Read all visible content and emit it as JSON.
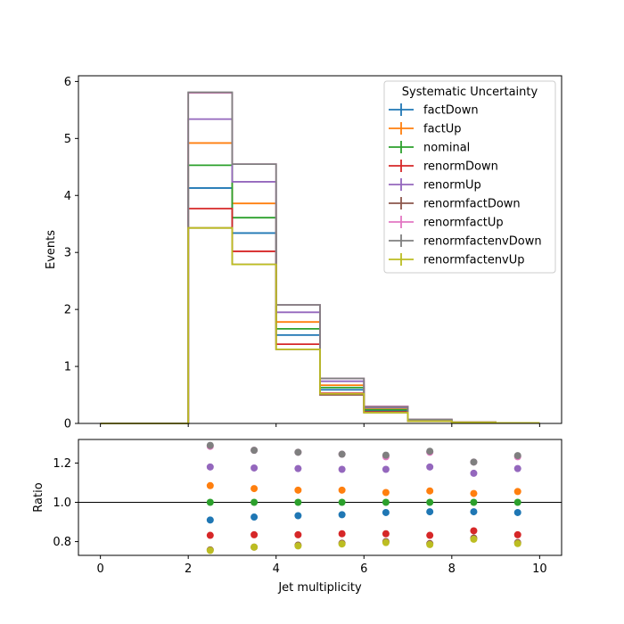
{
  "chart_data": [
    {
      "type": "step-histogram",
      "xlabel": "",
      "ylabel": "Events",
      "xlim": [
        -0.5,
        10.5
      ],
      "ylim": [
        0,
        6.1
      ],
      "xticks": [
        0,
        2,
        4,
        6,
        8,
        10
      ],
      "yticks": [
        0,
        1,
        2,
        3,
        4,
        5,
        6
      ],
      "bin_edges": [
        0,
        1,
        2,
        3,
        4,
        5,
        6,
        7,
        8,
        9,
        10
      ],
      "legend": {
        "title": "Systematic Uncertainty",
        "placement": "upper right"
      },
      "series": [
        {
          "name": "factDown",
          "color": "#1f77b4",
          "values": [
            0,
            0,
            4.13,
            3.34,
            1.55,
            0.59,
            0.22,
            0.05,
            0.02,
            0.01
          ]
        },
        {
          "name": "factUp",
          "color": "#ff7f0e",
          "values": [
            0,
            0,
            4.92,
            3.86,
            1.78,
            0.67,
            0.25,
            0.06,
            0.02,
            0.01
          ]
        },
        {
          "name": "nominal",
          "color": "#2ca02c",
          "values": [
            0,
            0,
            4.53,
            3.61,
            1.66,
            0.63,
            0.24,
            0.05,
            0.02,
            0.01
          ]
        },
        {
          "name": "renormDown",
          "color": "#d62728",
          "values": [
            0,
            0,
            3.77,
            3.02,
            1.39,
            0.53,
            0.2,
            0.04,
            0.02,
            0.01
          ]
        },
        {
          "name": "renormUp",
          "color": "#9467bd",
          "values": [
            0,
            0,
            5.34,
            4.24,
            1.95,
            0.74,
            0.28,
            0.06,
            0.02,
            0.01
          ]
        },
        {
          "name": "renormfactDown",
          "color": "#8c564b",
          "values": [
            0,
            0,
            3.43,
            2.79,
            1.3,
            0.5,
            0.19,
            0.04,
            0.02,
            0.01
          ]
        },
        {
          "name": "renormfactUp",
          "color": "#e377c2",
          "values": [
            0,
            0,
            5.8,
            4.55,
            2.08,
            0.79,
            0.3,
            0.07,
            0.02,
            0.01
          ]
        },
        {
          "name": "renormfactenvDown",
          "color": "#7f7f7f",
          "values": [
            0,
            0,
            5.81,
            4.55,
            2.08,
            0.79,
            0.29,
            0.07,
            0.02,
            0.01
          ]
        },
        {
          "name": "renormfactenvUp",
          "color": "#bcbd22",
          "values": [
            0,
            0,
            3.43,
            2.79,
            1.3,
            0.52,
            0.19,
            0.04,
            0.02,
            0.01
          ]
        }
      ]
    },
    {
      "type": "scatter",
      "xlabel": "Jet multiplicity",
      "ylabel": "Ratio",
      "xlim": [
        -0.5,
        10.5
      ],
      "ylim": [
        0.73,
        1.32
      ],
      "xticks": [
        0,
        2,
        4,
        6,
        8,
        10
      ],
      "yticks": [
        0.8,
        1.0,
        1.2
      ],
      "reference_line": 1.0,
      "x": [
        2.5,
        3.5,
        4.5,
        5.5,
        6.5,
        7.5,
        8.5,
        9.5
      ],
      "series": [
        {
          "name": "factDown",
          "color": "#1f77b4",
          "values": [
            0.91,
            0.925,
            0.932,
            0.937,
            0.948,
            0.952,
            0.952,
            0.948
          ]
        },
        {
          "name": "factUp",
          "color": "#ff7f0e",
          "values": [
            1.085,
            1.07,
            1.062,
            1.062,
            1.05,
            1.058,
            1.045,
            1.055
          ]
        },
        {
          "name": "nominal",
          "color": "#2ca02c",
          "values": [
            1.0,
            1.0,
            1.0,
            1.0,
            1.0,
            1.0,
            1.0,
            1.0
          ]
        },
        {
          "name": "renormDown",
          "color": "#d62728",
          "values": [
            0.832,
            0.835,
            0.835,
            0.84,
            0.84,
            0.832,
            0.855,
            0.835
          ]
        },
        {
          "name": "renormUp",
          "color": "#9467bd",
          "values": [
            1.18,
            1.175,
            1.172,
            1.168,
            1.168,
            1.18,
            1.148,
            1.172
          ]
        },
        {
          "name": "renormfactDown",
          "color": "#8c564b",
          "values": [
            0.758,
            0.772,
            0.782,
            0.792,
            0.8,
            0.79,
            0.818,
            0.795
          ]
        },
        {
          "name": "renormfactUp",
          "color": "#e377c2",
          "values": [
            1.285,
            1.265,
            1.255,
            1.245,
            1.232,
            1.255,
            1.205,
            1.232
          ]
        },
        {
          "name": "renormfactenvDown",
          "color": "#7f7f7f",
          "values": [
            1.29,
            1.265,
            1.255,
            1.245,
            1.24,
            1.26,
            1.205,
            1.238
          ]
        },
        {
          "name": "renormfactenvUp",
          "color": "#bcbd22",
          "values": [
            0.755,
            0.772,
            0.778,
            0.788,
            0.795,
            0.785,
            0.812,
            0.79
          ]
        }
      ]
    }
  ]
}
